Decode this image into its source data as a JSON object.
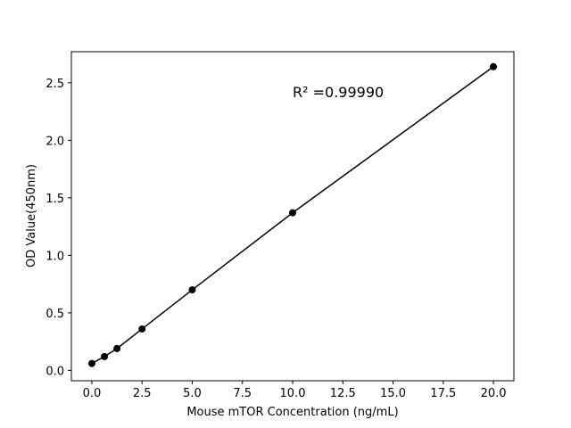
{
  "chart_data": {
    "type": "line",
    "x_label": "Mouse mTOR Concentration (ng/mL)",
    "y_label": "OD Value(450nm)",
    "annotation": "R² =0.99990",
    "x": [
      0,
      0.625,
      1.25,
      2.5,
      5,
      10,
      20
    ],
    "series": [
      {
        "color": "#000000",
        "values": [
          0.06,
          0.12,
          0.19,
          0.36,
          0.7,
          1.37,
          2.64
        ]
      }
    ],
    "xlim": [
      -1.02,
      21.02
    ],
    "ylim": [
      -0.09,
      2.77
    ],
    "xticks": [
      {
        "value": 0,
        "label": "0.0"
      },
      {
        "value": 2.5,
        "label": "2.5"
      },
      {
        "value": 5,
        "label": "5.0"
      },
      {
        "value": 7.5,
        "label": "7.5"
      },
      {
        "value": 10,
        "label": "10.0"
      },
      {
        "value": 12.5,
        "label": "12.5"
      },
      {
        "value": 15,
        "label": "15.0"
      },
      {
        "value": 17.5,
        "label": "17.5"
      },
      {
        "value": 20,
        "label": "20.0"
      }
    ],
    "yticks": [
      {
        "value": 0,
        "label": "0.0"
      },
      {
        "value": 0.5,
        "label": "0.5"
      },
      {
        "value": 1,
        "label": "1.0"
      },
      {
        "value": 1.5,
        "label": "1.5"
      },
      {
        "value": 2,
        "label": "2.0"
      },
      {
        "value": 2.5,
        "label": "2.5"
      }
    ],
    "grid": false
  }
}
